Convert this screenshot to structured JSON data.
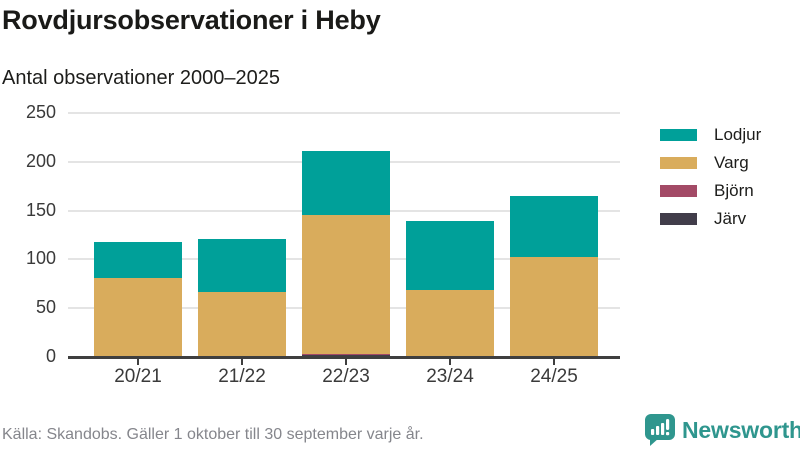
{
  "header": {
    "title": "Rovdjursobservationer i Heby",
    "subtitle": "Antal observationer 2000–2025"
  },
  "chart_data": {
    "type": "bar",
    "stacked": true,
    "title": "Rovdjursobservationer i Heby",
    "subtitle": "Antal observationer 2000–2025",
    "xlabel": "",
    "ylabel": "",
    "categories": [
      "20/21",
      "21/22",
      "22/23",
      "23/24",
      "24/25"
    ],
    "series": [
      {
        "name": "Lodjur",
        "color": "#00a099",
        "values": [
          37,
          54,
          65,
          70,
          63
        ]
      },
      {
        "name": "Varg",
        "color": "#d9ac5c",
        "values": [
          80,
          66,
          143,
          69,
          102
        ]
      },
      {
        "name": "Björn",
        "color": "#a34a66",
        "values": [
          1,
          1,
          1,
          0,
          0
        ]
      },
      {
        "name": "Järv",
        "color": "#413d4a",
        "values": [
          0,
          0,
          2,
          0,
          0
        ]
      }
    ],
    "totals": [
      118,
      121,
      211,
      139,
      165
    ],
    "ylim": [
      0,
      250
    ],
    "yticks": [
      0,
      50,
      100,
      150,
      200,
      250
    ],
    "grid": true,
    "legend_position": "right",
    "stack_order_bottom_to_top": [
      "Järv",
      "Björn",
      "Varg",
      "Lodjur"
    ]
  },
  "footer": {
    "source": "Källa: Skandobs. Gäller 1 oktober till 30 september varje år.",
    "brand": "Newsworthy",
    "brand_color": "#2f968e"
  }
}
